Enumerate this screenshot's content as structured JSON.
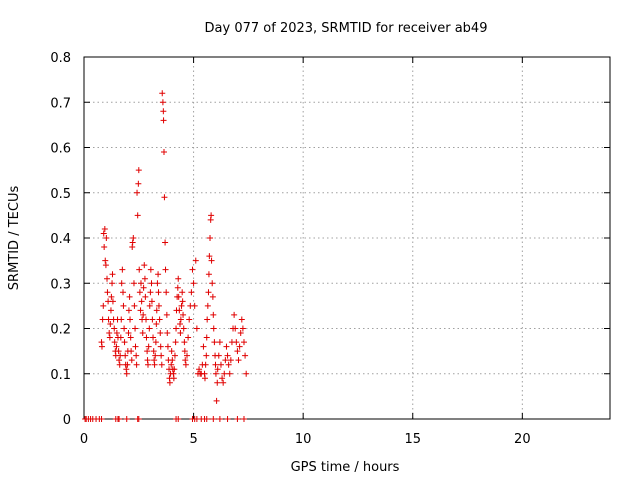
{
  "chart_data": {
    "type": "scatter",
    "title": "Day 077 of 2023, SRMTID for receiver ab49",
    "xlabel": "GPS time / hours",
    "ylabel": "SRMTID / TECUs",
    "xlim": [
      0,
      24
    ],
    "ylim": [
      0,
      0.8
    ],
    "xticks": [
      0,
      5,
      10,
      15,
      20
    ],
    "yticks": [
      0,
      0.1,
      0.2,
      0.3,
      0.4,
      0.5,
      0.6,
      0.7,
      0.8
    ],
    "xtick_labels": [
      "0",
      "5",
      "10",
      "15",
      "20"
    ],
    "ytick_labels": [
      "0",
      "0.1",
      "0.2",
      "0.3",
      "0.4",
      "0.5",
      "0.6",
      "0.7",
      "0.8"
    ],
    "grid": true,
    "marker": "plus",
    "color": "#e00000",
    "series": [
      {
        "name": "SRMTID",
        "points": [
          [
            0.05,
            0
          ],
          [
            0.1,
            0
          ],
          [
            0.2,
            0
          ],
          [
            0.3,
            0
          ],
          [
            0.4,
            0
          ],
          [
            0.55,
            0
          ],
          [
            0.7,
            0
          ],
          [
            0.8,
            0
          ],
          [
            1.45,
            0
          ],
          [
            1.55,
            0
          ],
          [
            1.6,
            0
          ],
          [
            1.95,
            0
          ],
          [
            2.45,
            0
          ],
          [
            2.5,
            0
          ],
          [
            4.2,
            0
          ],
          [
            4.3,
            0
          ],
          [
            4.95,
            0
          ],
          [
            5.05,
            0
          ],
          [
            5.15,
            0
          ],
          [
            5.35,
            0
          ],
          [
            5.5,
            0
          ],
          [
            5.6,
            0
          ],
          [
            5.9,
            0
          ],
          [
            6.2,
            0
          ],
          [
            6.55,
            0
          ],
          [
            7.0,
            0
          ],
          [
            7.3,
            0
          ],
          [
            0.8,
            0.17
          ],
          [
            0.82,
            0.16
          ],
          [
            0.85,
            0.22
          ],
          [
            0.88,
            0.25
          ],
          [
            0.9,
            0.41
          ],
          [
            0.92,
            0.38
          ],
          [
            0.95,
            0.42
          ],
          [
            0.97,
            0.35
          ],
          [
            1.0,
            0.34
          ],
          [
            1.02,
            0.4
          ],
          [
            1.05,
            0.31
          ],
          [
            1.07,
            0.28
          ],
          [
            1.1,
            0.26
          ],
          [
            1.12,
            0.22
          ],
          [
            1.15,
            0.19
          ],
          [
            1.18,
            0.18
          ],
          [
            1.2,
            0.21
          ],
          [
            1.23,
            0.24
          ],
          [
            1.25,
            0.27
          ],
          [
            1.28,
            0.3
          ],
          [
            1.3,
            0.32
          ],
          [
            1.32,
            0.26
          ],
          [
            1.35,
            0.22
          ],
          [
            1.38,
            0.2
          ],
          [
            1.4,
            0.17
          ],
          [
            1.43,
            0.15
          ],
          [
            1.45,
            0.14
          ],
          [
            1.48,
            0.16
          ],
          [
            1.5,
            0.19
          ],
          [
            1.53,
            0.22
          ],
          [
            1.55,
            0.18
          ],
          [
            1.58,
            0.15
          ],
          [
            1.6,
            0.13
          ],
          [
            1.63,
            0.12
          ],
          [
            1.65,
            0.14
          ],
          [
            1.68,
            0.18
          ],
          [
            1.7,
            0.22
          ],
          [
            1.72,
            0.3
          ],
          [
            1.75,
            0.33
          ],
          [
            1.78,
            0.28
          ],
          [
            1.8,
            0.25
          ],
          [
            1.83,
            0.2
          ],
          [
            1.85,
            0.17
          ],
          [
            1.88,
            0.14
          ],
          [
            1.9,
            0.12
          ],
          [
            1.93,
            0.11
          ],
          [
            1.95,
            0.1
          ],
          [
            1.98,
            0.12
          ],
          [
            2.0,
            0.15
          ],
          [
            2.03,
            0.19
          ],
          [
            2.05,
            0.24
          ],
          [
            2.08,
            0.27
          ],
          [
            2.1,
            0.22
          ],
          [
            2.13,
            0.18
          ],
          [
            2.15,
            0.15
          ],
          [
            2.18,
            0.13
          ],
          [
            2.2,
            0.38
          ],
          [
            2.22,
            0.39
          ],
          [
            2.25,
            0.4
          ],
          [
            2.28,
            0.3
          ],
          [
            2.3,
            0.25
          ],
          [
            2.33,
            0.2
          ],
          [
            2.35,
            0.16
          ],
          [
            2.38,
            0.14
          ],
          [
            2.4,
            0.12
          ],
          [
            2.42,
            0.5
          ],
          [
            2.45,
            0.45
          ],
          [
            2.48,
            0.52
          ],
          [
            2.5,
            0.55
          ],
          [
            2.52,
            0.33
          ],
          [
            2.55,
            0.28
          ],
          [
            2.58,
            0.24
          ],
          [
            2.6,
            0.3
          ],
          [
            2.63,
            0.26
          ],
          [
            2.65,
            0.22
          ],
          [
            2.68,
            0.19
          ],
          [
            2.7,
            0.23
          ],
          [
            2.72,
            0.29
          ],
          [
            2.75,
            0.34
          ],
          [
            2.78,
            0.31
          ],
          [
            2.8,
            0.27
          ],
          [
            2.83,
            0.22
          ],
          [
            2.85,
            0.18
          ],
          [
            2.88,
            0.15
          ],
          [
            2.9,
            0.13
          ],
          [
            2.92,
            0.12
          ],
          [
            2.95,
            0.16
          ],
          [
            2.98,
            0.2
          ],
          [
            3.0,
            0.25
          ],
          [
            3.03,
            0.28
          ],
          [
            3.05,
            0.33
          ],
          [
            3.08,
            0.3
          ],
          [
            3.1,
            0.26
          ],
          [
            3.12,
            0.22
          ],
          [
            3.15,
            0.18
          ],
          [
            3.18,
            0.15
          ],
          [
            3.2,
            0.13
          ],
          [
            3.22,
            0.12
          ],
          [
            3.25,
            0.14
          ],
          [
            3.28,
            0.17
          ],
          [
            3.3,
            0.21
          ],
          [
            3.32,
            0.24
          ],
          [
            3.35,
            0.3
          ],
          [
            3.38,
            0.32
          ],
          [
            3.4,
            0.28
          ],
          [
            3.42,
            0.25
          ],
          [
            3.45,
            0.22
          ],
          [
            3.48,
            0.19
          ],
          [
            3.5,
            0.16
          ],
          [
            3.52,
            0.14
          ],
          [
            3.55,
            0.12
          ],
          [
            3.57,
            0.72
          ],
          [
            3.6,
            0.7
          ],
          [
            3.62,
            0.68
          ],
          [
            3.63,
            0.66
          ],
          [
            3.65,
            0.59
          ],
          [
            3.67,
            0.49
          ],
          [
            3.7,
            0.39
          ],
          [
            3.72,
            0.33
          ],
          [
            3.75,
            0.28
          ],
          [
            3.78,
            0.23
          ],
          [
            3.8,
            0.19
          ],
          [
            3.83,
            0.16
          ],
          [
            3.85,
            0.13
          ],
          [
            3.88,
            0.11
          ],
          [
            3.9,
            0.09
          ],
          [
            3.92,
            0.08
          ],
          [
            3.95,
            0.1
          ],
          [
            3.98,
            0.12
          ],
          [
            4.0,
            0.15
          ],
          [
            4.03,
            0.13
          ],
          [
            4.05,
            0.11
          ],
          [
            4.08,
            0.1
          ],
          [
            4.1,
            0.09
          ],
          [
            4.12,
            0.11
          ],
          [
            4.15,
            0.14
          ],
          [
            4.18,
            0.17
          ],
          [
            4.2,
            0.2
          ],
          [
            4.22,
            0.24
          ],
          [
            4.25,
            0.27
          ],
          [
            4.28,
            0.29
          ],
          [
            4.3,
            0.31
          ],
          [
            4.32,
            0.27
          ],
          [
            4.35,
            0.24
          ],
          [
            4.38,
            0.21
          ],
          [
            4.4,
            0.19
          ],
          [
            4.42,
            0.22
          ],
          [
            4.45,
            0.25
          ],
          [
            4.48,
            0.28
          ],
          [
            4.5,
            0.26
          ],
          [
            4.52,
            0.23
          ],
          [
            4.55,
            0.2
          ],
          [
            4.58,
            0.17
          ],
          [
            4.6,
            0.15
          ],
          [
            4.62,
            0.13
          ],
          [
            4.65,
            0.12
          ],
          [
            4.7,
            0.14
          ],
          [
            4.75,
            0.18
          ],
          [
            4.8,
            0.22
          ],
          [
            4.85,
            0.25
          ],
          [
            4.9,
            0.28
          ],
          [
            4.95,
            0.33
          ],
          [
            5.0,
            0.3
          ],
          [
            5.05,
            0.25
          ],
          [
            5.1,
            0.35
          ],
          [
            5.15,
            0.2
          ],
          [
            5.2,
            0.1
          ],
          [
            5.25,
            0.11
          ],
          [
            5.3,
            0.1
          ],
          [
            5.35,
            0.1
          ],
          [
            5.4,
            0.12
          ],
          [
            5.45,
            0.16
          ],
          [
            5.5,
            0.1
          ],
          [
            5.52,
            0.09
          ],
          [
            5.55,
            0.12
          ],
          [
            5.58,
            0.14
          ],
          [
            5.6,
            0.18
          ],
          [
            5.62,
            0.22
          ],
          [
            5.65,
            0.25
          ],
          [
            5.68,
            0.28
          ],
          [
            5.7,
            0.32
          ],
          [
            5.72,
            0.36
          ],
          [
            5.75,
            0.4
          ],
          [
            5.78,
            0.44
          ],
          [
            5.8,
            0.45
          ],
          [
            5.82,
            0.35
          ],
          [
            5.85,
            0.3
          ],
          [
            5.88,
            0.27
          ],
          [
            5.9,
            0.23
          ],
          [
            5.92,
            0.2
          ],
          [
            5.95,
            0.17
          ],
          [
            5.98,
            0.14
          ],
          [
            6.0,
            0.12
          ],
          [
            6.02,
            0.1
          ],
          [
            6.05,
            0.04
          ],
          [
            6.08,
            0.08
          ],
          [
            6.1,
            0.11
          ],
          [
            6.15,
            0.14
          ],
          [
            6.2,
            0.17
          ],
          [
            6.25,
            0.12
          ],
          [
            6.3,
            0.09
          ],
          [
            6.35,
            0.08
          ],
          [
            6.4,
            0.1
          ],
          [
            6.45,
            0.13
          ],
          [
            6.5,
            0.16
          ],
          [
            6.55,
            0.14
          ],
          [
            6.6,
            0.12
          ],
          [
            6.65,
            0.1
          ],
          [
            6.7,
            0.13
          ],
          [
            6.75,
            0.17
          ],
          [
            6.8,
            0.2
          ],
          [
            6.85,
            0.23
          ],
          [
            6.9,
            0.2
          ],
          [
            6.95,
            0.17
          ],
          [
            7.0,
            0.15
          ],
          [
            7.05,
            0.13
          ],
          [
            7.1,
            0.16
          ],
          [
            7.15,
            0.19
          ],
          [
            7.2,
            0.22
          ],
          [
            7.25,
            0.2
          ],
          [
            7.3,
            0.17
          ],
          [
            7.35,
            0.14
          ],
          [
            7.4,
            0.1
          ]
        ]
      }
    ]
  }
}
